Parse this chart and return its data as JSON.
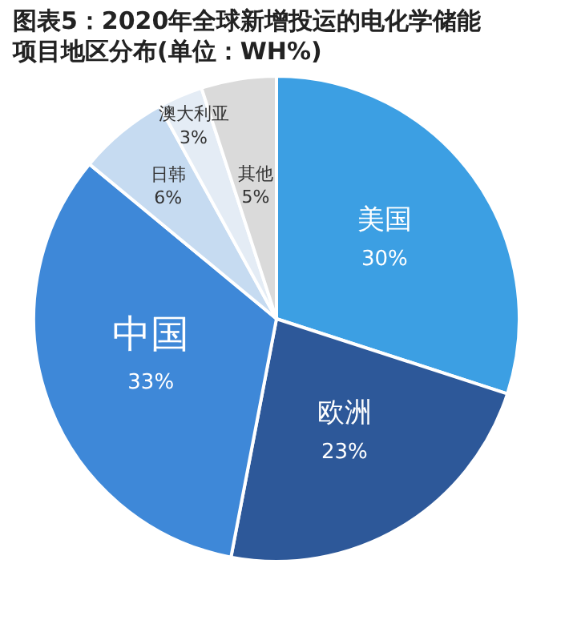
{
  "chart_data": {
    "type": "pie",
    "title": "图表5：2020年全球新增投运的电化学储能项目地区分布(单位：WH%)",
    "categories": [
      "美国",
      "欧洲",
      "中国",
      "日韩",
      "澳大利亚",
      "其他"
    ],
    "values": [
      30,
      23,
      33,
      6,
      3,
      5
    ],
    "colors": [
      "#3c9fe3",
      "#2d5899",
      "#3e88d8",
      "#c6dbf1",
      "#e4ecf5",
      "#dadada"
    ],
    "value_labels": [
      "30%",
      "23%",
      "33%",
      "6%",
      "3%",
      "5%"
    ],
    "legend": false
  }
}
